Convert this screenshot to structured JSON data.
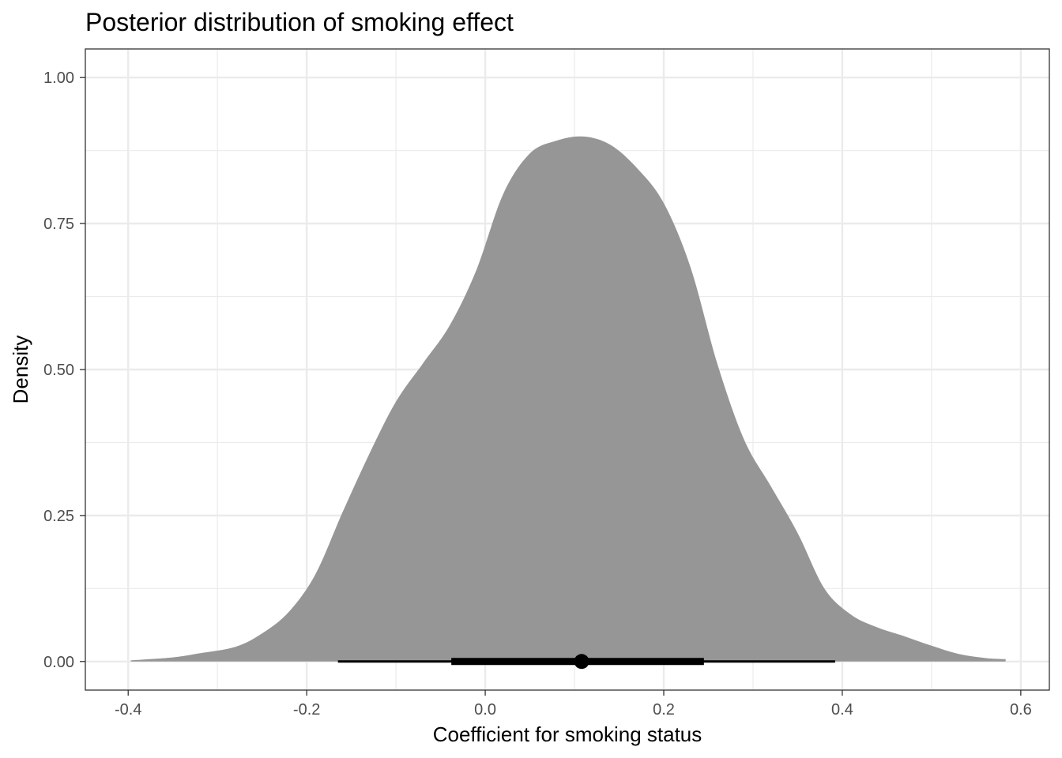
{
  "chart_data": {
    "type": "area",
    "title": "Posterior distribution of smoking effect",
    "xlabel": "Coefficient for smoking status",
    "ylabel": "Density",
    "xlim": [
      -0.448,
      0.632
    ],
    "ylim": [
      -0.049,
      1.049
    ],
    "x_ticks": [
      -0.4,
      -0.2,
      0.0,
      0.2,
      0.4,
      0.6
    ],
    "x_tick_labels": [
      "-0.4",
      "-0.2",
      "0.0",
      "0.2",
      "0.4",
      "0.6"
    ],
    "y_ticks": [
      0.0,
      0.25,
      0.5,
      0.75,
      1.0
    ],
    "y_tick_labels": [
      "0.00",
      "0.25",
      "0.50",
      "0.75",
      "1.00"
    ],
    "grid": true,
    "fill_color": "#969696",
    "density": {
      "x": [
        -0.397,
        -0.35,
        -0.32,
        -0.28,
        -0.25,
        -0.22,
        -0.19,
        -0.16,
        -0.13,
        -0.1,
        -0.07,
        -0.04,
        -0.01,
        0.02,
        0.05,
        0.08,
        0.11,
        0.14,
        0.17,
        0.2,
        0.23,
        0.26,
        0.29,
        0.32,
        0.35,
        0.38,
        0.41,
        0.44,
        0.47,
        0.5,
        0.53,
        0.56,
        0.583
      ],
      "y": [
        0.002,
        0.007,
        0.014,
        0.025,
        0.048,
        0.085,
        0.15,
        0.255,
        0.355,
        0.445,
        0.51,
        0.575,
        0.67,
        0.8,
        0.87,
        0.892,
        0.899,
        0.885,
        0.845,
        0.785,
        0.675,
        0.51,
        0.38,
        0.3,
        0.22,
        0.125,
        0.08,
        0.058,
        0.043,
        0.027,
        0.013,
        0.006,
        0.004
      ]
    },
    "point_interval": {
      "point": 0.108,
      "interval_66": [
        -0.038,
        0.245
      ],
      "interval_95": [
        -0.165,
        0.392
      ],
      "color": "#000000"
    }
  }
}
